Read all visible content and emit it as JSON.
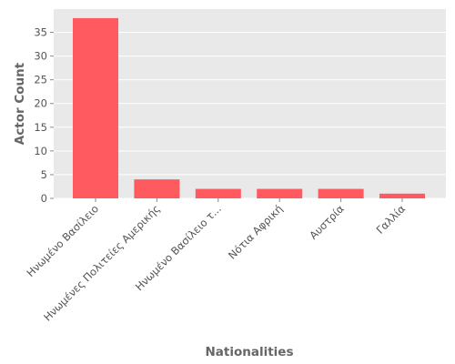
{
  "chart_data": {
    "type": "bar",
    "title": "",
    "xlabel": "Nationalities",
    "ylabel": "Actor Count",
    "categories": [
      "Ηνωμένο Βασίλειο",
      "Ηνωμένες Πολιτείες Αμερικής",
      "Ηνωμένο Βασίλειο τ...",
      "Νότια Αφρική",
      "Αυστρία",
      "Γαλλία"
    ],
    "values": [
      38,
      4,
      2,
      2,
      2,
      1
    ],
    "ylim": [
      0,
      39.9
    ],
    "yticks": [
      0,
      5,
      10,
      15,
      20,
      25,
      30,
      35
    ],
    "grid": true,
    "legend": "none",
    "colors": {
      "bar": "#ff5a5f",
      "panel": "#e9e9e9",
      "grid": "#ffffff"
    }
  }
}
